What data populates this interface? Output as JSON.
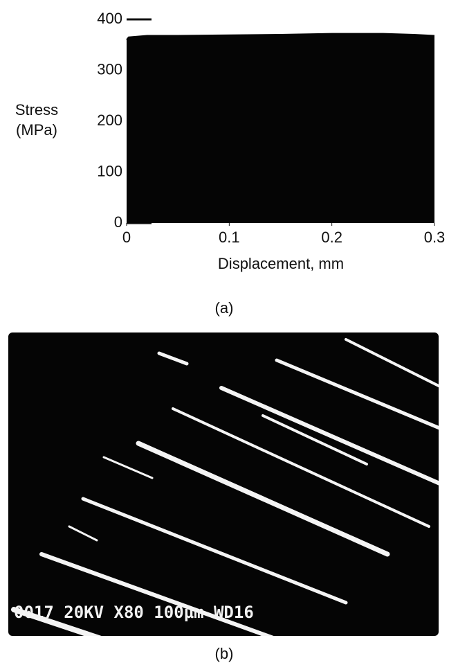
{
  "chart_data": {
    "type": "area",
    "y_label_line1": "Stress",
    "y_label_line2": "(MPa)",
    "x_label": "Displacement, mm",
    "x": [
      0,
      0.002,
      0.02,
      0.05,
      0.1,
      0.15,
      0.2,
      0.25,
      0.28,
      0.3
    ],
    "values": [
      360,
      365,
      368,
      368,
      369,
      370,
      372,
      372,
      370,
      368
    ],
    "color": "#050505",
    "xlim": [
      0,
      0.3
    ],
    "ylim": [
      0,
      400
    ],
    "xticks": [
      0,
      0.1,
      0.2,
      0.3
    ],
    "yticks": [
      0,
      100,
      200,
      300,
      400
    ],
    "grid": false,
    "panel_label": "(a)"
  },
  "micrograph": {
    "caption": "0017 20KV X80 100µm WD16",
    "panel_label": "(b)"
  }
}
